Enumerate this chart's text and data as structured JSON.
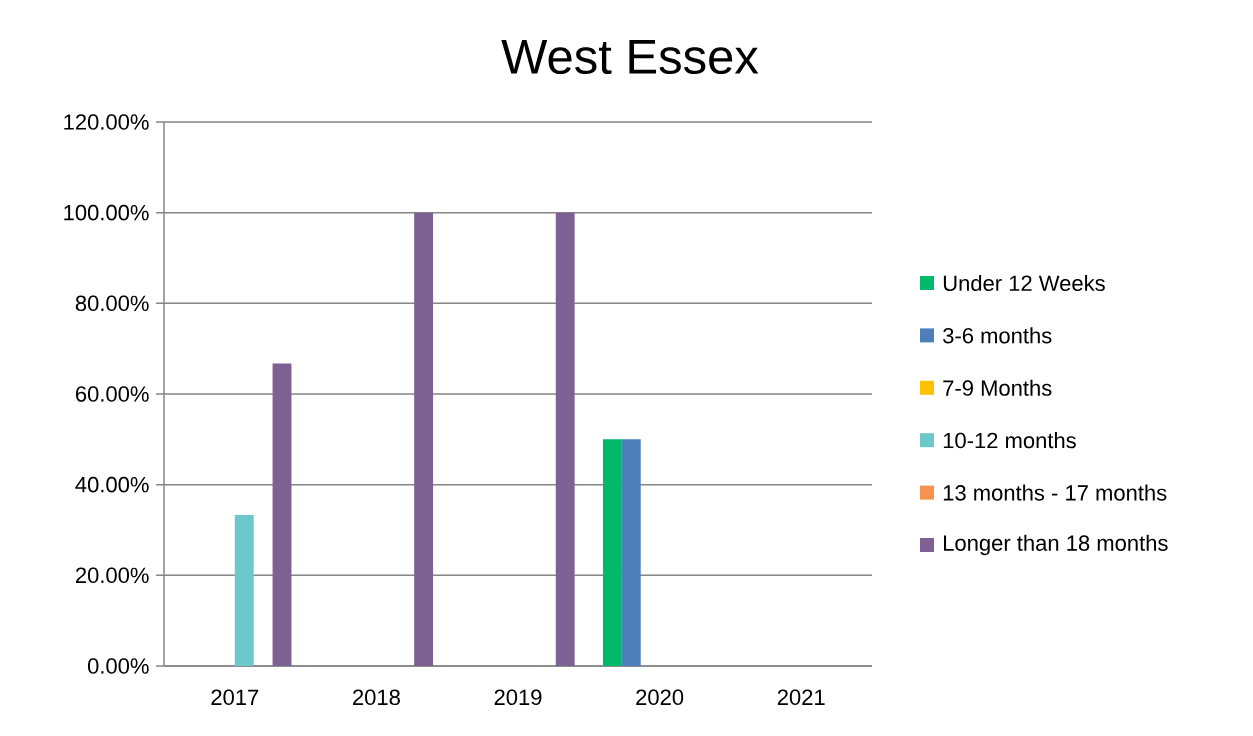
{
  "chart_data": {
    "type": "bar",
    "title": "West Essex",
    "categories": [
      "2017",
      "2018",
      "2019",
      "2020",
      "2021"
    ],
    "series": [
      {
        "name": "Under 12 Weeks",
        "color": "#00b96b",
        "values": [
          null,
          null,
          null,
          50,
          null
        ]
      },
      {
        "name": "3-6 months",
        "color": "#4f7fba",
        "values": [
          null,
          null,
          null,
          50,
          null
        ]
      },
      {
        "name": "7-9 Months",
        "color": "#ffc000",
        "values": [
          null,
          null,
          null,
          null,
          null
        ]
      },
      {
        "name": "10-12 months",
        "color": "#6dc8cc",
        "values": [
          33.3,
          null,
          null,
          null,
          null
        ]
      },
      {
        "name": "13 months - 17 months",
        "color": "#f89250",
        "values": [
          null,
          null,
          null,
          null,
          null
        ]
      },
      {
        "name": "Longer than 18 months",
        "color": "#7e6095",
        "values": [
          66.7,
          100,
          100,
          null,
          null
        ]
      }
    ],
    "ylim": [
      0,
      120
    ],
    "yticks": [
      {
        "value": 0,
        "label": "0.00%"
      },
      {
        "value": 20,
        "label": "20.00%"
      },
      {
        "value": 40,
        "label": "40.00%"
      },
      {
        "value": 60,
        "label": "60.00%"
      },
      {
        "value": 80,
        "label": "80.00%"
      },
      {
        "value": 100,
        "label": "100.00%"
      },
      {
        "value": 120,
        "label": "120.00%"
      }
    ],
    "grid": "y",
    "legend": "right"
  }
}
